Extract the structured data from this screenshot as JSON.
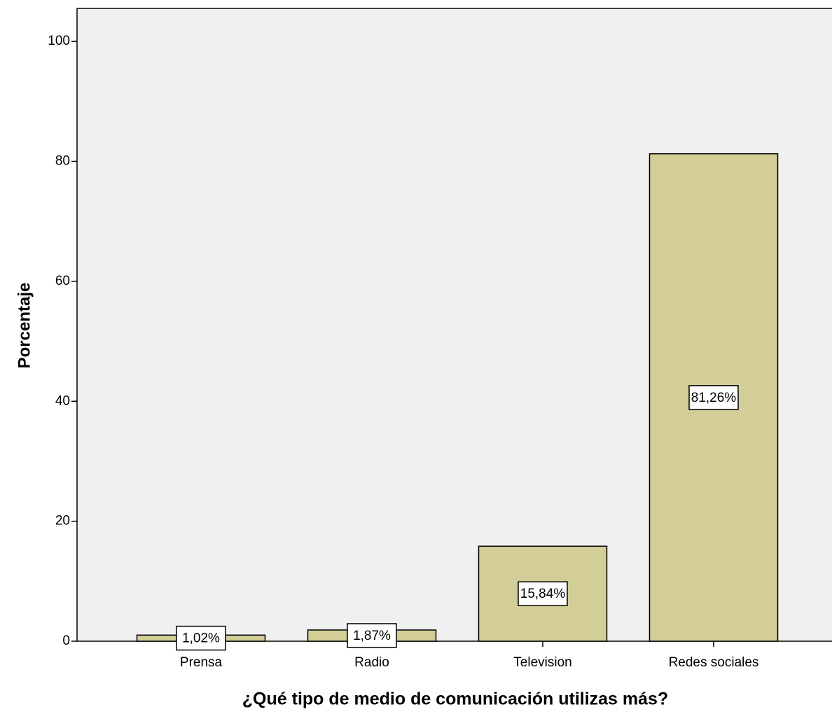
{
  "chart_data": {
    "type": "bar",
    "x_label": "¿Qué tipo de medio de comunicación utilizas más?",
    "y_label": "Porcentaje",
    "categories": [
      "Prensa",
      "Radio",
      "Television",
      "Redes sociales"
    ],
    "values": [
      1.02,
      1.87,
      15.84,
      81.26
    ],
    "value_labels": [
      "1,02%",
      "1,87%",
      "15,84%",
      "81,26%"
    ],
    "color": "#d3ce97",
    "ylim": [
      0,
      105.5
    ],
    "yticks": [
      0,
      20,
      40,
      60,
      80,
      100
    ],
    "grid": false
  }
}
